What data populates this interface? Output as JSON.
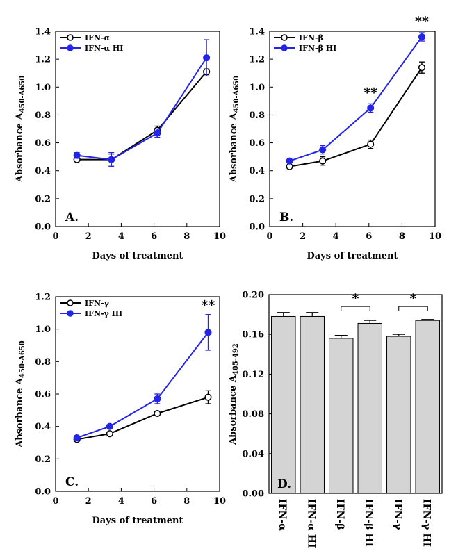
{
  "chart_data": [
    {
      "type": "line",
      "panel_label": "A.",
      "xlabel": "Days of treatment",
      "ylabel_main": "Absorbance A",
      "ylabel_sub": "450-A650",
      "xlim": [
        0,
        10
      ],
      "ylim": [
        0,
        1.4
      ],
      "xticks": [
        0,
        2,
        4,
        6,
        8,
        10
      ],
      "yticks": [
        0.0,
        0.2,
        0.4,
        0.6,
        0.8,
        1.0,
        1.2,
        1.4
      ],
      "ytick_labels": [
        "0.0",
        "0.2",
        "0.4",
        "0.6",
        "0.8",
        "1.0",
        "1.2",
        "1.4"
      ],
      "legend_position": "top-left",
      "series": [
        {
          "name": "IFN-α",
          "marker": "open-circle",
          "color": "#000000",
          "x": [
            1.3,
            3.4,
            6.2,
            9.2
          ],
          "y": [
            0.48,
            0.48,
            0.69,
            1.11
          ],
          "err": [
            0.01,
            0.04,
            0.03,
            0.02
          ]
        },
        {
          "name": "IFN-α HI",
          "marker": "filled-circle",
          "color": "#2424e6",
          "x": [
            1.3,
            3.4,
            6.2,
            9.2
          ],
          "y": [
            0.51,
            0.48,
            0.67,
            1.21
          ],
          "err": [
            0.02,
            0.05,
            0.03,
            0.13
          ]
        }
      ],
      "annotations": []
    },
    {
      "type": "line",
      "panel_label": "B.",
      "xlabel": "Days of treatment",
      "ylabel_main": "Absorbance A",
      "ylabel_sub": "450-A650",
      "xlim": [
        0,
        10
      ],
      "ylim": [
        0,
        1.4
      ],
      "xticks": [
        0,
        2,
        4,
        6,
        8,
        10
      ],
      "yticks": [
        0.0,
        0.2,
        0.4,
        0.6,
        0.8,
        1.0,
        1.2,
        1.4
      ],
      "ytick_labels": [
        "0.0",
        "0.2",
        "0.4",
        "0.6",
        "0.8",
        "1.0",
        "1.2",
        "1.4"
      ],
      "legend_position": "top-left",
      "series": [
        {
          "name": "IFN-β",
          "marker": "open-circle",
          "color": "#000000",
          "x": [
            1.2,
            3.2,
            6.1,
            9.2
          ],
          "y": [
            0.43,
            0.47,
            0.59,
            1.14
          ],
          "err": [
            0.01,
            0.03,
            0.03,
            0.04
          ]
        },
        {
          "name": "IFN-β HI",
          "marker": "filled-circle",
          "color": "#2424e6",
          "x": [
            1.2,
            3.2,
            6.1,
            9.2
          ],
          "y": [
            0.47,
            0.55,
            0.85,
            1.36
          ],
          "err": [
            0.01,
            0.03,
            0.03,
            0.03
          ]
        }
      ],
      "annotations": [
        {
          "text": "**",
          "x": 6.1,
          "y": 0.93
        },
        {
          "text": "**",
          "x": 9.2,
          "y": 1.44
        }
      ]
    },
    {
      "type": "line",
      "panel_label": "C.",
      "xlabel": "Days of treatment",
      "ylabel_main": "Absorbance A",
      "ylabel_sub": "450-A650",
      "xlim": [
        0,
        10
      ],
      "ylim": [
        0,
        1.2
      ],
      "xticks": [
        0,
        2,
        4,
        6,
        8,
        10
      ],
      "yticks": [
        0.0,
        0.2,
        0.4,
        0.6,
        0.8,
        1.0,
        1.2
      ],
      "ytick_labels": [
        "0.0",
        "0.2",
        "0.4",
        "0.6",
        "0.8",
        "1.0",
        "1.2"
      ],
      "legend_position": "top-left",
      "series": [
        {
          "name": "IFN-γ",
          "marker": "open-circle",
          "color": "#000000",
          "x": [
            1.3,
            3.3,
            6.2,
            9.3
          ],
          "y": [
            0.32,
            0.355,
            0.48,
            0.58
          ],
          "err": [
            0.01,
            0.01,
            0.01,
            0.04
          ]
        },
        {
          "name": "IFN-γ HI",
          "marker": "filled-circle",
          "color": "#2424e6",
          "x": [
            1.3,
            3.3,
            6.2,
            9.3
          ],
          "y": [
            0.33,
            0.4,
            0.57,
            0.98
          ],
          "err": [
            0.01,
            0.01,
            0.03,
            0.11
          ]
        }
      ],
      "annotations": [
        {
          "text": "**",
          "x": 9.3,
          "y": 1.12
        }
      ]
    },
    {
      "type": "bar",
      "panel_label": "D.",
      "ylabel_main": "Absorbance A",
      "ylabel_sub": "405-492",
      "ylim": [
        0,
        0.2
      ],
      "yticks": [
        0.0,
        0.04,
        0.08,
        0.12,
        0.16,
        0.2
      ],
      "ytick_labels": [
        "0.00",
        "0.04",
        "0.08",
        "0.12",
        "0.16",
        "0.20"
      ],
      "categories": [
        "IFN-α",
        "IFN-α HI",
        "IFN-β",
        "IFN-β HI",
        "IFN-γ",
        "IFN-γ HI"
      ],
      "values": [
        0.178,
        0.178,
        0.156,
        0.171,
        0.158,
        0.174
      ],
      "err": [
        0.004,
        0.004,
        0.003,
        0.003,
        0.002,
        0.001
      ],
      "bar_color": "#d4d4d4",
      "significance": [
        {
          "text": "*",
          "from": 2,
          "to": 3,
          "y": 0.188
        },
        {
          "text": "*",
          "from": 4,
          "to": 5,
          "y": 0.188
        }
      ]
    }
  ]
}
